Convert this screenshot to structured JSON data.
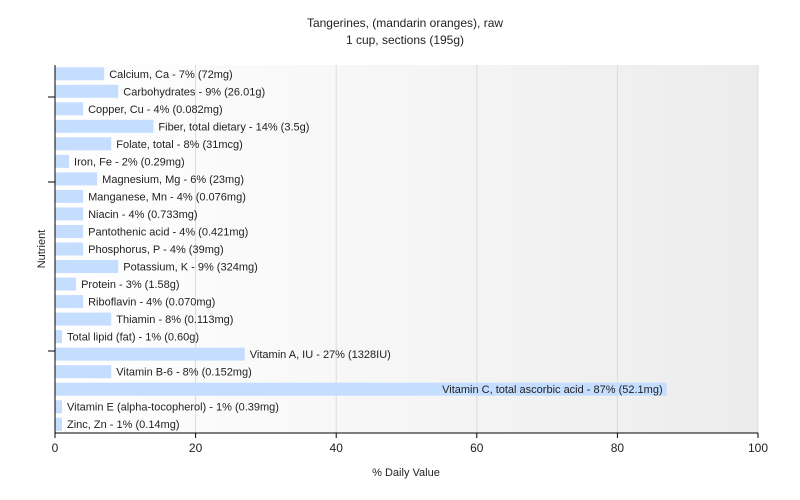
{
  "chart_data": {
    "type": "bar",
    "orientation": "horizontal",
    "title": "Tangerines, (mandarin oranges), raw",
    "subtitle": "1 cup, sections (195g)",
    "xlabel": "% Daily Value",
    "ylabel": "Nutrient",
    "xlim": [
      0,
      100
    ],
    "xticks": [
      0,
      20,
      40,
      60,
      80,
      100
    ],
    "grid": true,
    "bar_color": "#c5deff",
    "categories": [
      "Calcium, Ca - 7% (72mg)",
      "Carbohydrates - 9% (26.01g)",
      "Copper, Cu - 4% (0.082mg)",
      "Fiber, total dietary - 14% (3.5g)",
      "Folate, total - 8% (31mcg)",
      "Iron, Fe - 2% (0.29mg)",
      "Magnesium, Mg - 6% (23mg)",
      "Manganese, Mn - 4% (0.076mg)",
      "Niacin - 4% (0.733mg)",
      "Pantothenic acid - 4% (0.421mg)",
      "Phosphorus, P - 4% (39mg)",
      "Potassium, K - 9% (324mg)",
      "Protein - 3% (1.58g)",
      "Riboflavin - 4% (0.070mg)",
      "Thiamin - 8% (0.113mg)",
      "Total lipid (fat) - 1% (0.60g)",
      "Vitamin A, IU - 27% (1328IU)",
      "Vitamin B-6 - 8% (0.152mg)",
      "Vitamin C, total ascorbic acid - 87% (52.1mg)",
      "Vitamin E (alpha-tocopherol) - 1% (0.39mg)",
      "Zinc, Zn - 1% (0.14mg)"
    ],
    "values": [
      7,
      9,
      4,
      14,
      8,
      2,
      6,
      4,
      4,
      4,
      4,
      9,
      3,
      4,
      8,
      1,
      27,
      8,
      87,
      1,
      1
    ]
  }
}
